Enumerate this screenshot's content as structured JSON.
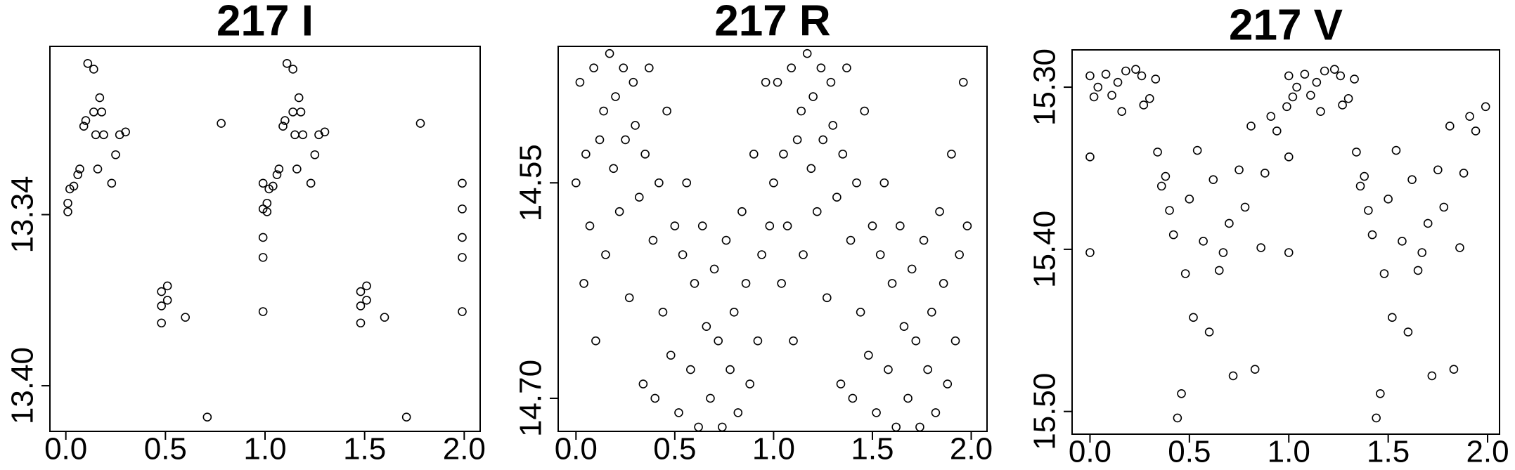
{
  "chart_data": [
    {
      "type": "scatter",
      "title": "217 I",
      "color": "#000000",
      "x": [
        0.01,
        0.02,
        0.04,
        0.06,
        0.07,
        0.09,
        0.1,
        0.11,
        0.14,
        0.14,
        0.15,
        0.16,
        0.17,
        0.18,
        0.19,
        0.23,
        0.25,
        0.27,
        0.3,
        0.48,
        0.48,
        0.48,
        0.51,
        0.51,
        0.6,
        0.71,
        0.78,
        0.01,
        0.99,
        0.99,
        0.99,
        0.99,
        0.99,
        1.01,
        1.02,
        1.04,
        1.06,
        1.07,
        1.09,
        1.1,
        1.11,
        1.14,
        1.14,
        1.15,
        1.16,
        1.17,
        1.18,
        1.19,
        1.23,
        1.25,
        1.27,
        1.3,
        1.48,
        1.48,
        1.48,
        1.51,
        1.51,
        1.6,
        1.71,
        1.78,
        1.01,
        1.99,
        1.99,
        1.99,
        1.99,
        1.99
      ],
      "values": [
        13.339,
        13.331,
        13.33,
        13.326,
        13.324,
        13.309,
        13.307,
        13.287,
        13.289,
        13.304,
        13.312,
        13.324,
        13.299,
        13.304,
        13.312,
        13.329,
        13.319,
        13.312,
        13.311,
        13.367,
        13.372,
        13.378,
        13.365,
        13.37,
        13.376,
        13.411,
        13.308,
        13.336,
        13.329,
        13.338,
        13.348,
        13.355,
        13.374,
        13.339,
        13.331,
        13.33,
        13.326,
        13.324,
        13.309,
        13.307,
        13.287,
        13.289,
        13.304,
        13.312,
        13.324,
        13.299,
        13.304,
        13.312,
        13.329,
        13.319,
        13.312,
        13.311,
        13.367,
        13.372,
        13.378,
        13.365,
        13.37,
        13.376,
        13.411,
        13.308,
        13.336,
        13.329,
        13.338,
        13.348,
        13.355,
        13.374
      ],
      "xlim": [
        -0.08,
        2.08
      ],
      "ylim": [
        13.416,
        13.281
      ],
      "xticks": [
        {
          "value": 0,
          "label": "0.0"
        },
        0.5,
        {
          "value": 1,
          "label": "1.0"
        },
        1.5,
        {
          "value": 2,
          "label": "2.0"
        }
      ],
      "yticks": [
        13.34,
        {
          "value": 13.4,
          "label": "13.40"
        }
      ]
    },
    {
      "type": "scatter",
      "title": "217 R",
      "color": "#000000",
      "x": [
        0.0,
        0.02,
        0.04,
        0.05,
        0.07,
        0.09,
        0.1,
        0.12,
        0.14,
        0.15,
        0.17,
        0.19,
        0.2,
        0.22,
        0.24,
        0.25,
        0.27,
        0.29,
        0.3,
        0.32,
        0.34,
        0.35,
        0.37,
        0.39,
        0.4,
        0.42,
        0.44,
        0.46,
        0.48,
        0.5,
        0.52,
        0.54,
        0.56,
        0.58,
        0.6,
        0.62,
        0.64,
        0.66,
        0.68,
        0.7,
        0.72,
        0.74,
        0.76,
        0.78,
        0.8,
        0.82,
        0.84,
        0.86,
        0.88,
        0.9,
        0.92,
        0.94,
        0.96,
        0.98,
        1.0,
        1.02,
        1.04,
        1.05,
        1.07,
        1.09,
        1.1,
        1.12,
        1.14,
        1.15,
        1.17,
        1.19,
        1.2,
        1.22,
        1.24,
        1.25,
        1.27,
        1.29,
        1.3,
        1.32,
        1.34,
        1.35,
        1.37,
        1.39,
        1.4,
        1.42,
        1.44,
        1.46,
        1.48,
        1.5,
        1.52,
        1.54,
        1.56,
        1.58,
        1.6,
        1.62,
        1.64,
        1.66,
        1.68,
        1.7,
        1.72,
        1.74,
        1.76,
        1.78,
        1.8,
        1.82,
        1.84,
        1.86,
        1.88,
        1.9,
        1.92,
        1.94,
        1.96,
        1.98
      ],
      "values": [
        14.55,
        14.48,
        14.62,
        14.53,
        14.58,
        14.47,
        14.66,
        14.52,
        14.5,
        14.6,
        14.46,
        14.54,
        14.49,
        14.57,
        14.47,
        14.52,
        14.63,
        14.48,
        14.51,
        14.56,
        14.69,
        14.53,
        14.47,
        14.59,
        14.7,
        14.55,
        14.64,
        14.5,
        14.67,
        14.58,
        14.71,
        14.6,
        14.55,
        14.68,
        14.62,
        14.72,
        14.58,
        14.65,
        14.7,
        14.61,
        14.66,
        14.72,
        14.59,
        14.68,
        14.64,
        14.71,
        14.57,
        14.62,
        14.69,
        14.53,
        14.66,
        14.6,
        14.48,
        14.58,
        14.55,
        14.48,
        14.62,
        14.53,
        14.58,
        14.47,
        14.66,
        14.52,
        14.5,
        14.6,
        14.46,
        14.54,
        14.49,
        14.57,
        14.47,
        14.52,
        14.63,
        14.48,
        14.51,
        14.56,
        14.69,
        14.53,
        14.47,
        14.59,
        14.7,
        14.55,
        14.64,
        14.5,
        14.67,
        14.58,
        14.71,
        14.6,
        14.55,
        14.68,
        14.62,
        14.72,
        14.58,
        14.65,
        14.7,
        14.61,
        14.66,
        14.72,
        14.59,
        14.68,
        14.64,
        14.71,
        14.57,
        14.62,
        14.69,
        14.53,
        14.66,
        14.6,
        14.48,
        14.58
      ],
      "xlim": [
        -0.09,
        2.08
      ],
      "ylim": [
        14.723,
        14.455
      ],
      "xticks": [
        {
          "value": 0,
          "label": "0.0"
        },
        0.5,
        {
          "value": 1,
          "label": "1.0"
        },
        1.5,
        {
          "value": 2,
          "label": "2.0"
        }
      ],
      "yticks": [
        14.55,
        {
          "value": 14.7,
          "label": "14.70"
        }
      ]
    },
    {
      "type": "scatter",
      "title": "217 V",
      "color": "#000000",
      "x": [
        0.0,
        0.0,
        0.0,
        0.02,
        0.04,
        0.08,
        0.11,
        0.14,
        0.16,
        0.18,
        0.23,
        0.26,
        0.27,
        0.3,
        0.33,
        0.34,
        0.36,
        0.38,
        0.4,
        0.42,
        0.44,
        0.46,
        0.48,
        0.5,
        0.52,
        0.54,
        0.57,
        0.6,
        0.62,
        0.65,
        0.67,
        0.7,
        0.72,
        0.75,
        0.78,
        0.81,
        0.83,
        0.86,
        0.88,
        0.91,
        0.94,
        0.99,
        1.0,
        1.0,
        1.0,
        1.02,
        1.04,
        1.08,
        1.11,
        1.14,
        1.16,
        1.18,
        1.23,
        1.26,
        1.27,
        1.3,
        1.33,
        1.34,
        1.36,
        1.38,
        1.4,
        1.42,
        1.44,
        1.46,
        1.48,
        1.5,
        1.52,
        1.54,
        1.57,
        1.6,
        1.62,
        1.65,
        1.67,
        1.7,
        1.72,
        1.75,
        1.78,
        1.81,
        1.83,
        1.86,
        1.88,
        1.91,
        1.94,
        1.99
      ],
      "values": [
        15.293,
        15.343,
        15.402,
        15.306,
        15.3,
        15.292,
        15.305,
        15.297,
        15.315,
        15.29,
        15.289,
        15.293,
        15.311,
        15.307,
        15.295,
        15.34,
        15.361,
        15.355,
        15.376,
        15.391,
        15.504,
        15.489,
        15.415,
        15.369,
        15.442,
        15.339,
        15.395,
        15.451,
        15.357,
        15.413,
        15.402,
        15.384,
        15.478,
        15.351,
        15.374,
        15.324,
        15.474,
        15.399,
        15.353,
        15.318,
        15.327,
        15.312,
        15.293,
        15.343,
        15.402,
        15.306,
        15.3,
        15.292,
        15.305,
        15.297,
        15.315,
        15.29,
        15.289,
        15.293,
        15.311,
        15.307,
        15.295,
        15.34,
        15.361,
        15.355,
        15.376,
        15.391,
        15.504,
        15.489,
        15.415,
        15.369,
        15.442,
        15.339,
        15.395,
        15.451,
        15.357,
        15.413,
        15.402,
        15.384,
        15.478,
        15.351,
        15.374,
        15.324,
        15.474,
        15.399,
        15.353,
        15.318,
        15.327,
        15.312
      ],
      "xlim": [
        -0.09,
        2.06
      ],
      "ylim": [
        15.514,
        15.277
      ],
      "xticks": [
        {
          "value": 0,
          "label": "0.0"
        },
        0.5,
        {
          "value": 1,
          "label": "1.0"
        },
        1.5,
        {
          "value": 2,
          "label": "2.0"
        }
      ],
      "yticks": [
        {
          "value": 15.3,
          "label": "15.30"
        },
        {
          "value": 15.4,
          "label": "15.40"
        },
        {
          "value": 15.5,
          "label": "15.50"
        }
      ]
    }
  ]
}
